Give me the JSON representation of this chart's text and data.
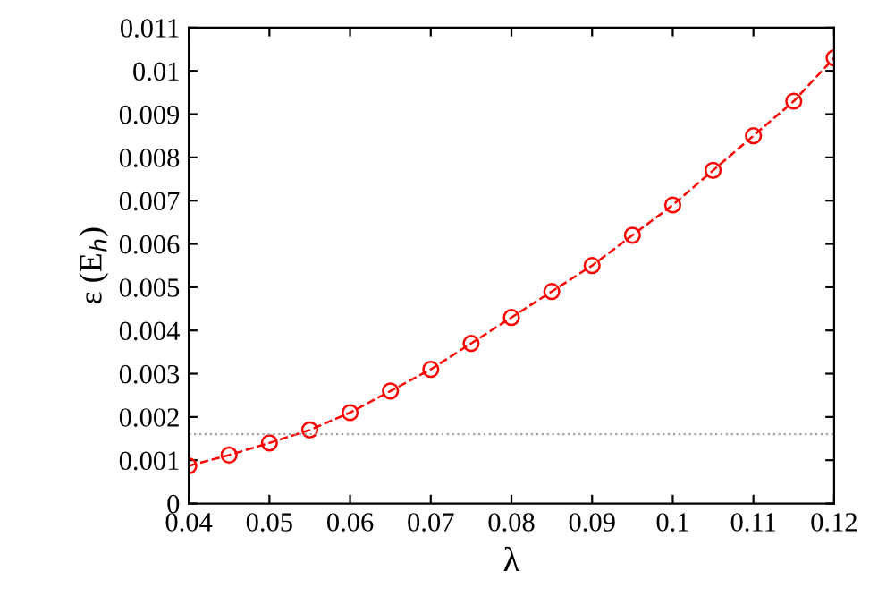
{
  "chart_data": {
    "type": "line",
    "xlabel": "λ",
    "ylabel": "ε (E$_{h}$)",
    "x": [
      0.04,
      0.045,
      0.05,
      0.055,
      0.06,
      0.065,
      0.07,
      0.075,
      0.08,
      0.085,
      0.09,
      0.095,
      0.1,
      0.105,
      0.11,
      0.115,
      0.12
    ],
    "series": [
      {
        "color": "#ff0000",
        "values": [
          0.00087,
          0.00112,
          0.0014,
          0.0017,
          0.0021,
          0.0026,
          0.0031,
          0.0037,
          0.0043,
          0.0049,
          0.0055,
          0.0062,
          0.0069,
          0.0077,
          0.0085,
          0.0093,
          0.0103
        ]
      }
    ],
    "marker": "circle",
    "line_style": "dashed",
    "xlim": [
      0.04,
      0.12
    ],
    "ylim": [
      0,
      0.011
    ],
    "xticks": [
      0.04,
      0.05,
      0.06,
      0.07,
      0.08,
      0.09,
      0.1,
      0.11,
      0.12
    ],
    "yticks": [
      0,
      0.001,
      0.002,
      0.003,
      0.004,
      0.005,
      0.006,
      0.007,
      0.008,
      0.009,
      0.01,
      0.011
    ],
    "ref_lines": [
      {
        "axis": "y",
        "value": 0.0016,
        "color": "#a0a0a0",
        "line_style": "dotted"
      }
    ],
    "grid": false,
    "legend": false
  }
}
